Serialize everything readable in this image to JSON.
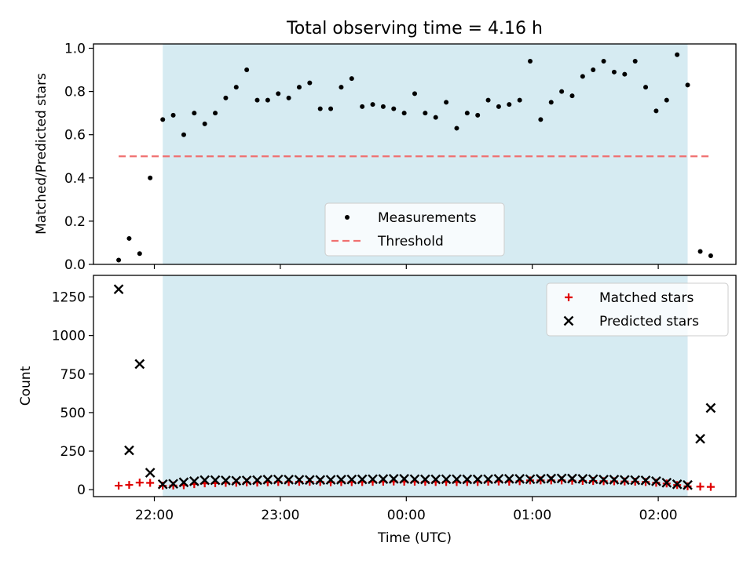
{
  "title": "Total observing time = 4.16 h",
  "chart_data": [
    {
      "type": "scatter",
      "ylabel": "Matched/Predicted stars",
      "ylim": [
        0,
        1.02
      ],
      "yticks": [
        0,
        0.2,
        0.4,
        0.6,
        0.8,
        1.0
      ],
      "ytick_labels": [
        "0.0",
        "0.2",
        "0.4",
        "0.6",
        "0.8",
        "1.0"
      ],
      "x_type": "time",
      "shaded_span": [
        "22:04",
        "02:14"
      ],
      "series": [
        {
          "name": "Measurements",
          "marker": "dot",
          "color": "#000000",
          "x": [
            "21:43",
            "21:48",
            "21:53",
            "21:58",
            "22:04",
            "22:09",
            "22:14",
            "22:19",
            "22:24",
            "22:29",
            "22:34",
            "22:39",
            "22:44",
            "22:49",
            "22:54",
            "22:59",
            "23:04",
            "23:09",
            "23:14",
            "23:19",
            "23:24",
            "23:29",
            "23:34",
            "23:39",
            "23:44",
            "23:49",
            "23:54",
            "23:59",
            "00:04",
            "00:09",
            "00:14",
            "00:19",
            "00:24",
            "00:29",
            "00:34",
            "00:39",
            "00:44",
            "00:49",
            "00:54",
            "00:59",
            "01:04",
            "01:09",
            "01:14",
            "01:19",
            "01:24",
            "01:29",
            "01:34",
            "01:39",
            "01:44",
            "01:49",
            "01:54",
            "01:59",
            "02:04",
            "02:09",
            "02:14",
            "02:20",
            "02:25"
          ],
          "values": [
            0.02,
            0.12,
            0.05,
            0.4,
            0.67,
            0.69,
            0.6,
            0.7,
            0.65,
            0.7,
            0.77,
            0.82,
            0.9,
            0.76,
            0.76,
            0.79,
            0.77,
            0.82,
            0.84,
            0.72,
            0.72,
            0.82,
            0.86,
            0.73,
            0.74,
            0.73,
            0.72,
            0.7,
            0.79,
            0.7,
            0.68,
            0.75,
            0.63,
            0.7,
            0.69,
            0.76,
            0.73,
            0.74,
            0.76,
            0.94,
            0.67,
            0.75,
            0.8,
            0.78,
            0.87,
            0.9,
            0.94,
            0.89,
            0.88,
            0.94,
            0.82,
            0.71,
            0.76,
            0.97,
            0.83,
            0.06,
            0.04
          ]
        },
        {
          "name": "Threshold",
          "marker": "dashed-line",
          "color": "#f07070",
          "x": [
            "21:43",
            "02:25"
          ],
          "values": [
            0.5,
            0.5
          ]
        }
      ],
      "legend": "lower-center"
    },
    {
      "type": "scatter",
      "xlabel": "Time (UTC)",
      "ylabel": "Count",
      "ylim": [
        -45,
        1390
      ],
      "yticks": [
        0,
        250,
        500,
        750,
        1000,
        1250
      ],
      "ytick_labels": [
        "0",
        "250",
        "500",
        "750",
        "1000",
        "1250"
      ],
      "x_type": "time",
      "xlim": [
        "21:31",
        "02:37"
      ],
      "xtick_labels": [
        "22:00",
        "23:00",
        "00:00",
        "01:00",
        "02:00"
      ],
      "shaded_span": [
        "22:04",
        "02:14"
      ],
      "series": [
        {
          "name": "Matched stars",
          "marker": "plus",
          "color": "#e00000",
          "x": [
            "21:43",
            "21:48",
            "21:53",
            "21:58",
            "22:04",
            "22:09",
            "22:14",
            "22:19",
            "22:24",
            "22:29",
            "22:34",
            "22:39",
            "22:44",
            "22:49",
            "22:54",
            "22:59",
            "23:04",
            "23:09",
            "23:14",
            "23:19",
            "23:24",
            "23:29",
            "23:34",
            "23:39",
            "23:44",
            "23:49",
            "23:54",
            "23:59",
            "00:04",
            "00:09",
            "00:14",
            "00:19",
            "00:24",
            "00:29",
            "00:34",
            "00:39",
            "00:44",
            "00:49",
            "00:54",
            "00:59",
            "01:04",
            "01:09",
            "01:14",
            "01:19",
            "01:24",
            "01:29",
            "01:34",
            "01:39",
            "01:44",
            "01:49",
            "01:54",
            "01:59",
            "02:04",
            "02:09",
            "02:14",
            "02:20",
            "02:25"
          ],
          "values": [
            26,
            31,
            46,
            44,
            26,
            27,
            29,
            36,
            41,
            42,
            44,
            45,
            47,
            46,
            48,
            50,
            50,
            51,
            51,
            50,
            48,
            49,
            49,
            50,
            51,
            52,
            53,
            52,
            52,
            51,
            50,
            50,
            49,
            50,
            50,
            52,
            53,
            52,
            55,
            60,
            60,
            60,
            60,
            58,
            57,
            56,
            55,
            54,
            53,
            52,
            50,
            45,
            40,
            30,
            22,
            20,
            18
          ]
        },
        {
          "name": "Predicted stars",
          "marker": "x",
          "color": "#000000",
          "x": [
            "21:43",
            "21:48",
            "21:53",
            "21:58",
            "22:04",
            "22:09",
            "22:14",
            "22:19",
            "22:24",
            "22:29",
            "22:34",
            "22:39",
            "22:44",
            "22:49",
            "22:54",
            "22:59",
            "23:04",
            "23:09",
            "23:14",
            "23:19",
            "23:24",
            "23:29",
            "23:34",
            "23:39",
            "23:44",
            "23:49",
            "23:54",
            "23:59",
            "00:04",
            "00:09",
            "00:14",
            "00:19",
            "00:24",
            "00:29",
            "00:34",
            "00:39",
            "00:44",
            "00:49",
            "00:54",
            "00:59",
            "01:04",
            "01:09",
            "01:14",
            "01:19",
            "01:24",
            "01:29",
            "01:34",
            "01:39",
            "01:44",
            "01:49",
            "01:54",
            "01:59",
            "02:04",
            "02:09",
            "02:14",
            "02:20",
            "02:25"
          ],
          "values": [
            1300,
            255,
            815,
            110,
            35,
            38,
            48,
            55,
            62,
            62,
            60,
            58,
            60,
            62,
            65,
            66,
            65,
            64,
            63,
            63,
            64,
            65,
            66,
            67,
            68,
            69,
            70,
            70,
            68,
            67,
            67,
            68,
            68,
            67,
            67,
            68,
            70,
            70,
            70,
            68,
            70,
            72,
            73,
            72,
            70,
            68,
            65,
            65,
            63,
            62,
            60,
            55,
            45,
            35,
            30,
            330,
            530
          ]
        }
      ],
      "legend": "top-right"
    }
  ]
}
